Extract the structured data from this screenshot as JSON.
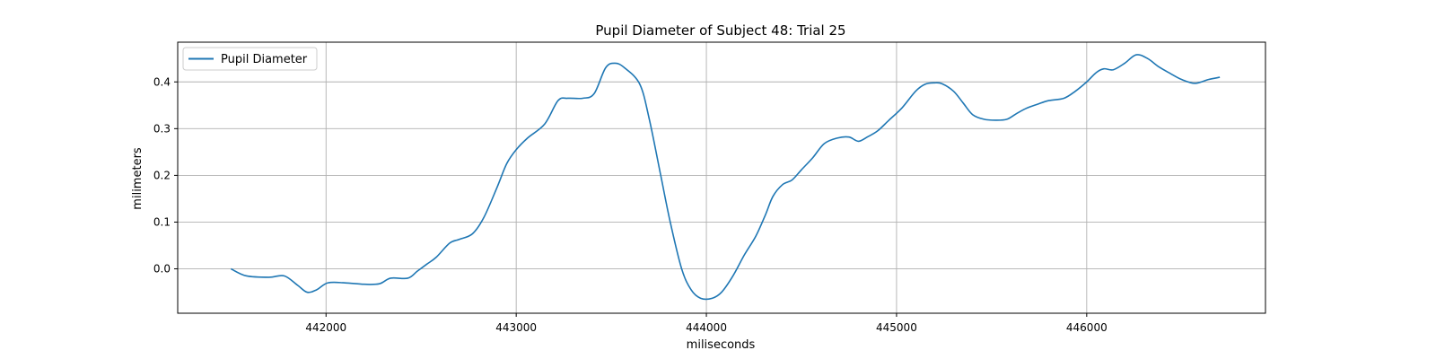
{
  "chart_data": {
    "type": "line",
    "title": "Pupil Diameter of Subject 48: Trial 25",
    "xlabel": "miliseconds",
    "ylabel": "milimeters",
    "xlim": [
      441220,
      446940
    ],
    "ylim": [
      -0.095,
      0.485
    ],
    "xticks": [
      442000,
      443000,
      444000,
      445000,
      446000
    ],
    "yticks": [
      0.0,
      0.1,
      0.2,
      0.3,
      0.4
    ],
    "ytick_labels": [
      "0.0",
      "0.1",
      "0.2",
      "0.3",
      "0.4"
    ],
    "grid": true,
    "legend_position": "top-left",
    "series": [
      {
        "name": "Pupil Diameter",
        "color": "#1f77b4",
        "x": [
          441500,
          441580,
          441700,
          441780,
          441850,
          441900,
          441950,
          442010,
          442100,
          442200,
          442280,
          442340,
          442430,
          442480,
          442530,
          442580,
          442650,
          442700,
          442770,
          442830,
          442900,
          442950,
          443000,
          443060,
          443150,
          443220,
          443270,
          443350,
          443410,
          443470,
          443520,
          443570,
          443650,
          443700,
          443760,
          443810,
          443870,
          443920,
          443970,
          444030,
          444080,
          444140,
          444200,
          444260,
          444310,
          444350,
          444400,
          444450,
          444500,
          444560,
          444620,
          444690,
          444750,
          444800,
          444850,
          444900,
          444960,
          445030,
          445100,
          445150,
          445200,
          445240,
          445300,
          445350,
          445400,
          445460,
          445520,
          445580,
          445630,
          445680,
          445740,
          445800,
          445880,
          445940,
          446000,
          446050,
          446090,
          446140,
          446200,
          446260,
          446320,
          446380,
          446440,
          446500,
          446570,
          446640,
          446700
        ],
        "y": [
          0.0,
          -0.015,
          -0.018,
          -0.015,
          -0.035,
          -0.05,
          -0.045,
          -0.03,
          -0.03,
          -0.033,
          -0.032,
          -0.02,
          -0.02,
          -0.005,
          0.01,
          0.025,
          0.055,
          0.063,
          0.075,
          0.11,
          0.175,
          0.225,
          0.255,
          0.28,
          0.31,
          0.36,
          0.365,
          0.365,
          0.375,
          0.43,
          0.44,
          0.43,
          0.395,
          0.32,
          0.2,
          0.1,
          0.0,
          -0.045,
          -0.063,
          -0.063,
          -0.05,
          -0.015,
          0.03,
          0.07,
          0.115,
          0.155,
          0.18,
          0.19,
          0.212,
          0.238,
          0.268,
          0.28,
          0.282,
          0.273,
          0.283,
          0.295,
          0.318,
          0.345,
          0.38,
          0.395,
          0.398,
          0.396,
          0.38,
          0.355,
          0.33,
          0.32,
          0.318,
          0.32,
          0.332,
          0.343,
          0.352,
          0.36,
          0.365,
          0.38,
          0.4,
          0.42,
          0.428,
          0.426,
          0.44,
          0.458,
          0.45,
          0.432,
          0.418,
          0.405,
          0.397,
          0.405,
          0.41
        ]
      }
    ]
  }
}
